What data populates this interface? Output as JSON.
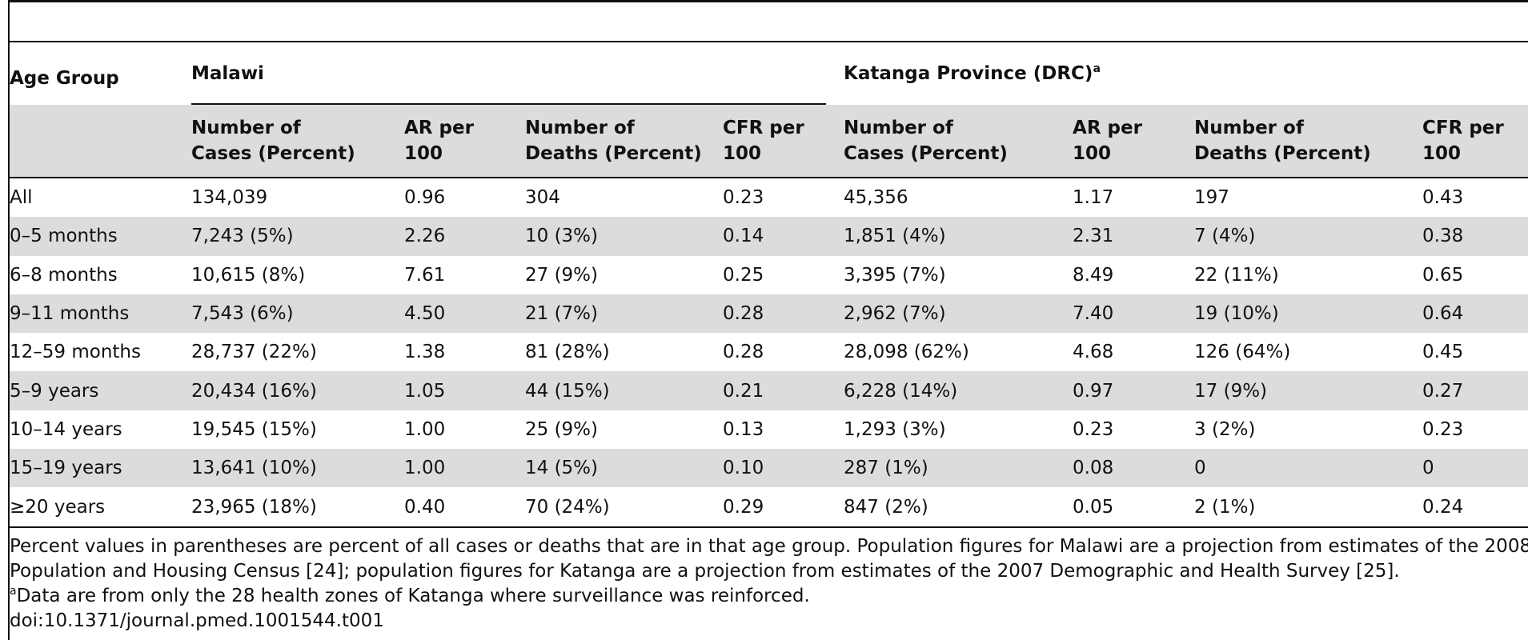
{
  "table": {
    "age_group_header": "Age Group",
    "groups": [
      {
        "label": "Malawi",
        "footnote": ""
      },
      {
        "label": "Katanga Province (DRC)",
        "footnote": "a"
      }
    ],
    "subheaders": {
      "cases_line1": "Number of",
      "cases_line2": "Cases (Percent)",
      "ar_line1": "AR per",
      "ar_line2": "100",
      "deaths_line1": "Number of",
      "deaths_line2": "Deaths (Percent)",
      "cfr_line1": "CFR per",
      "cfr_line2": "100"
    },
    "rows": [
      {
        "age": "All",
        "m_cases": "134,039",
        "m_ar": "0.96",
        "m_deaths": "304",
        "m_cfr": "0.23",
        "k_cases": "45,356",
        "k_ar": "1.17",
        "k_deaths": "197",
        "k_cfr": "0.43"
      },
      {
        "age": "0–5 months",
        "m_cases": "7,243 (5%)",
        "m_ar": "2.26",
        "m_deaths": "10 (3%)",
        "m_cfr": "0.14",
        "k_cases": "1,851 (4%)",
        "k_ar": "2.31",
        "k_deaths": "7 (4%)",
        "k_cfr": "0.38"
      },
      {
        "age": "6–8 months",
        "m_cases": "10,615 (8%)",
        "m_ar": "7.61",
        "m_deaths": "27 (9%)",
        "m_cfr": "0.25",
        "k_cases": "3,395 (7%)",
        "k_ar": "8.49",
        "k_deaths": "22 (11%)",
        "k_cfr": "0.65"
      },
      {
        "age": "9–11 months",
        "m_cases": "7,543 (6%)",
        "m_ar": "4.50",
        "m_deaths": "21 (7%)",
        "m_cfr": "0.28",
        "k_cases": "2,962 (7%)",
        "k_ar": "7.40",
        "k_deaths": "19 (10%)",
        "k_cfr": "0.64"
      },
      {
        "age": "12–59 months",
        "m_cases": "28,737 (22%)",
        "m_ar": "1.38",
        "m_deaths": "81 (28%)",
        "m_cfr": "0.28",
        "k_cases": "28,098 (62%)",
        "k_ar": "4.68",
        "k_deaths": "126 (64%)",
        "k_cfr": "0.45"
      },
      {
        "age": "5–9 years",
        "m_cases": "20,434 (16%)",
        "m_ar": "1.05",
        "m_deaths": "44 (15%)",
        "m_cfr": "0.21",
        "k_cases": "6,228 (14%)",
        "k_ar": "0.97",
        "k_deaths": "17 (9%)",
        "k_cfr": "0.27"
      },
      {
        "age": "10–14 years",
        "m_cases": "19,545 (15%)",
        "m_ar": "1.00",
        "m_deaths": "25 (9%)",
        "m_cfr": "0.13",
        "k_cases": "1,293 (3%)",
        "k_ar": "0.23",
        "k_deaths": "3 (2%)",
        "k_cfr": "0.23"
      },
      {
        "age": "15–19 years",
        "m_cases": "13,641 (10%)",
        "m_ar": "1.00",
        "m_deaths": "14 (5%)",
        "m_cfr": "0.10",
        "k_cases": "287 (1%)",
        "k_ar": "0.08",
        "k_deaths": "0",
        "k_cfr": "0"
      },
      {
        "age": "≥20 years",
        "m_cases": "23,965 (18%)",
        "m_ar": "0.40",
        "m_deaths": "70 (24%)",
        "m_cfr": "0.29",
        "k_cases": "847 (2%)",
        "k_ar": "0.05",
        "k_deaths": "2 (1%)",
        "k_cfr": "0.24"
      }
    ]
  },
  "notes": {
    "line1": "Percent values in parentheses are percent of all cases or deaths that are in that age group. Population figures for Malawi are a projection from estimates of the 2008",
    "line2": "Population and Housing Census [24]; population figures for Katanga are a projection from estimates of the 2007 Demographic and Health Survey [25].",
    "footnote_marker": "a",
    "footnote_text": "Data are from only the 28 health zones of Katanga where surveillance was reinforced.",
    "doi": "doi:10.1371/journal.pmed.1001544.t001"
  }
}
